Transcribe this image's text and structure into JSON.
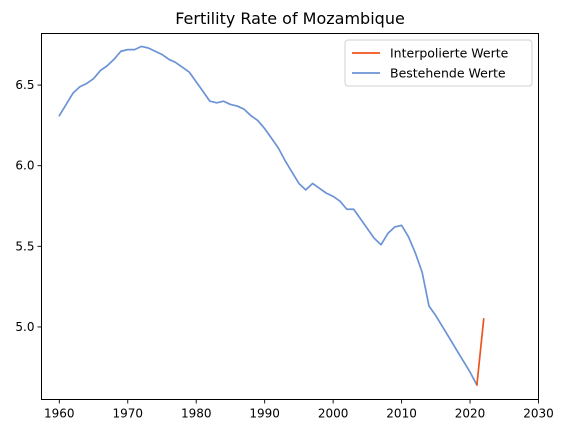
{
  "chart_data": {
    "type": "line",
    "title": "Fertility Rate of Mozambique",
    "xlabel": "",
    "ylabel": "",
    "xlim": [
      1957.4,
      2030
    ],
    "ylim": [
      4.55,
      6.82
    ],
    "xticks": [
      1960,
      1970,
      1980,
      1990,
      2000,
      2010,
      2020,
      2030
    ],
    "yticks": [
      5.0,
      5.5,
      6.0,
      6.5
    ],
    "ytick_labels": [
      "5.0",
      "5.5",
      "6.0",
      "6.5"
    ],
    "grid": false,
    "legend_position": "top-right",
    "series": [
      {
        "name": "Interpolierte Werte",
        "color": "#f0531e",
        "x": [
          2021,
          2022
        ],
        "y": [
          4.64,
          5.05
        ]
      },
      {
        "name": "Bestehende Werte",
        "color": "#6b93d6",
        "x": [
          1960,
          1961,
          1962,
          1963,
          1964,
          1965,
          1966,
          1967,
          1968,
          1969,
          1970,
          1971,
          1972,
          1973,
          1974,
          1975,
          1976,
          1977,
          1978,
          1979,
          1980,
          1981,
          1982,
          1983,
          1984,
          1985,
          1986,
          1987,
          1988,
          1989,
          1990,
          1991,
          1992,
          1993,
          1994,
          1995,
          1996,
          1997,
          1998,
          1999,
          2000,
          2001,
          2002,
          2003,
          2004,
          2005,
          2006,
          2007,
          2008,
          2009,
          2010,
          2011,
          2012,
          2013,
          2014,
          2015,
          2016,
          2017,
          2018,
          2019,
          2020,
          2021
        ],
        "y": [
          6.31,
          6.38,
          6.45,
          6.49,
          6.51,
          6.54,
          6.59,
          6.62,
          6.66,
          6.71,
          6.72,
          6.72,
          6.74,
          6.73,
          6.71,
          6.69,
          6.66,
          6.64,
          6.61,
          6.58,
          6.52,
          6.46,
          6.4,
          6.39,
          6.4,
          6.38,
          6.37,
          6.35,
          6.31,
          6.28,
          6.23,
          6.17,
          6.11,
          6.03,
          5.96,
          5.89,
          5.85,
          5.89,
          5.86,
          5.83,
          5.81,
          5.78,
          5.73,
          5.73,
          5.67,
          5.61,
          5.55,
          5.51,
          5.58,
          5.62,
          5.63,
          5.56,
          5.46,
          5.34,
          5.13,
          5.07,
          5.0,
          4.93,
          4.86,
          4.79,
          4.72,
          4.64
        ]
      }
    ]
  }
}
